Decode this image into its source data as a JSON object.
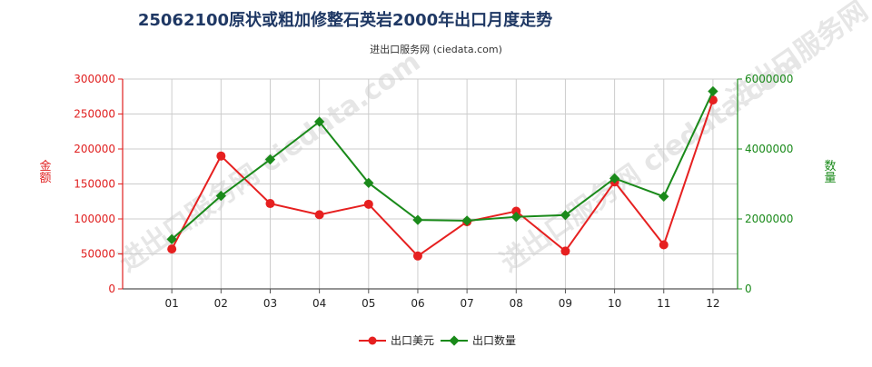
{
  "chart_data": {
    "type": "line",
    "title": "25062100原状或粗加修整石英岩2000年出口月度走势",
    "subtitle": "进出口服务网 (ciedata.com)",
    "watermark": "进出口服务网 ciedata.com",
    "categories": [
      "01",
      "02",
      "03",
      "04",
      "05",
      "06",
      "07",
      "08",
      "09",
      "10",
      "11",
      "12"
    ],
    "y_left": {
      "label": "金额",
      "ticks": [
        "0",
        "50000",
        "100000",
        "150000",
        "200000",
        "250000",
        "300000"
      ],
      "range": [
        0,
        300000
      ]
    },
    "y_right": {
      "label": "数量",
      "ticks": [
        "0",
        "2000000",
        "4000000",
        "6000000"
      ],
      "range": [
        0,
        6000000
      ]
    },
    "series": [
      {
        "name": "出口美元",
        "axis": "left",
        "color": "#e62020",
        "values": [
          57000,
          190000,
          122000,
          106000,
          121000,
          47000,
          96000,
          111000,
          54000,
          153000,
          63000,
          270000
        ]
      },
      {
        "name": "出口数量",
        "axis": "right",
        "color": "#1a8a1a",
        "values": [
          1420000,
          2660000,
          3700000,
          4780000,
          3030000,
          1970000,
          1950000,
          2060000,
          2110000,
          3160000,
          2640000,
          5650000
        ]
      }
    ],
    "grid": true,
    "legend_position": "bottom-center"
  }
}
